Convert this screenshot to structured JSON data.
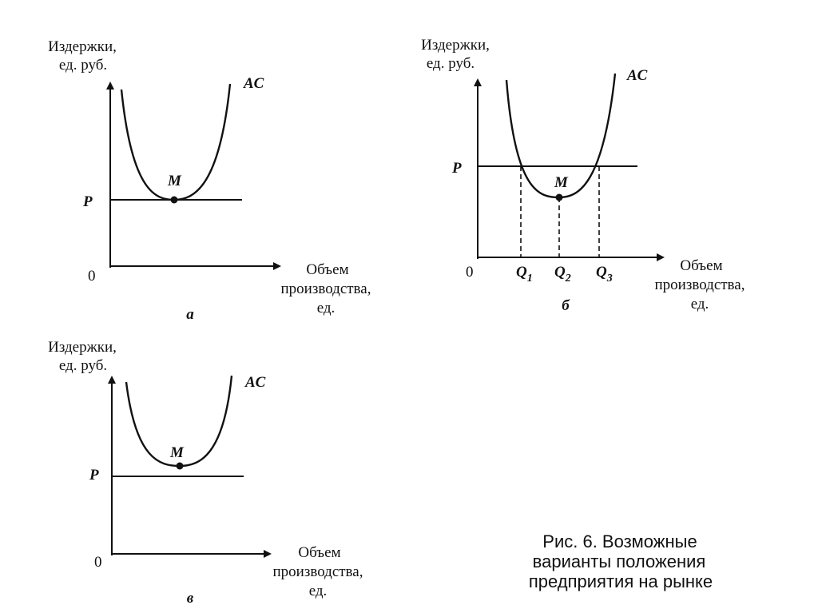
{
  "panels": [
    {
      "label": "а",
      "y_axis_label": [
        "Издержки,",
        "ед. руб."
      ],
      "x_axis_label": [
        "Объем",
        "производства,",
        "ед."
      ],
      "origin": "0",
      "curve_label": "AC",
      "point_label": "M",
      "price_label": "P"
    },
    {
      "label": "б",
      "y_axis_label": [
        "Издержки,",
        "ед. руб."
      ],
      "x_axis_label": [
        "Объем",
        "производства,",
        "ед."
      ],
      "origin": "0",
      "curve_label": "AC",
      "point_label": "M",
      "price_label": "P",
      "quantities": [
        {
          "symbol": "Q",
          "index": "1"
        },
        {
          "symbol": "Q",
          "index": "2"
        },
        {
          "symbol": "Q",
          "index": "3"
        }
      ]
    },
    {
      "label": "в",
      "y_axis_label": [
        "Издержки,",
        "ед. руб."
      ],
      "x_axis_label": [
        "Объем",
        "производства,",
        "ед."
      ],
      "origin": "0",
      "curve_label": "AC",
      "point_label": "M",
      "price_label": "P"
    }
  ],
  "caption": [
    "Рис. 6. Возможные",
    "варианты положения",
    "предприятия на рынке"
  ]
}
